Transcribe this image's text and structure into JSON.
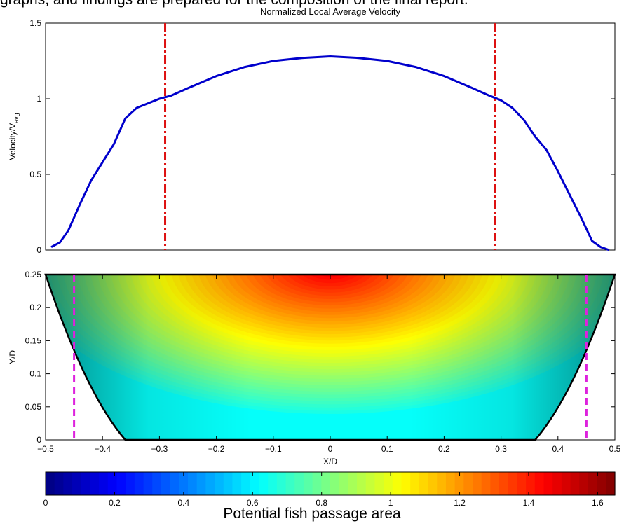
{
  "page": {
    "caption_top": "graphs, and findings are prepared for the composition of the final report.",
    "caption_bottom": "Potential fish passage area"
  },
  "chart_data": [
    {
      "type": "line",
      "title": "Normalized Local Average Velocity",
      "xlabel": "",
      "ylabel": "Velocity/V",
      "ylabel_subscript": "avg",
      "xlim": [
        -0.5,
        0.5
      ],
      "ylim": [
        0,
        1.5
      ],
      "yticks": [
        0,
        0.5,
        1,
        1.5
      ],
      "series_color": "#0000cc",
      "series": [
        {
          "x": [
            -0.49,
            -0.475,
            -0.46,
            -0.44,
            -0.42,
            -0.4,
            -0.38,
            -0.36,
            -0.34,
            -0.32,
            -0.3,
            -0.28,
            -0.25,
            -0.2,
            -0.15,
            -0.1,
            -0.05,
            0,
            0.05,
            0.1,
            0.15,
            0.2,
            0.25,
            0.28,
            0.3,
            0.32,
            0.34,
            0.36,
            0.38,
            0.4,
            0.42,
            0.44,
            0.46,
            0.475,
            0.49
          ],
          "y": [
            0.02,
            0.05,
            0.13,
            0.3,
            0.46,
            0.58,
            0.7,
            0.87,
            0.94,
            0.97,
            1.0,
            1.02,
            1.07,
            1.15,
            1.21,
            1.25,
            1.27,
            1.28,
            1.27,
            1.25,
            1.21,
            1.15,
            1.07,
            1.02,
            0.99,
            0.94,
            0.86,
            0.75,
            0.66,
            0.52,
            0.37,
            0.22,
            0.06,
            0.02,
            0.0
          ]
        }
      ],
      "vlines": [
        {
          "x": -0.29,
          "color": "#dd1111",
          "style": "dashdot"
        },
        {
          "x": 0.29,
          "color": "#dd1111",
          "style": "dashdot"
        }
      ]
    },
    {
      "type": "heatmap",
      "xlabel": "X/D",
      "ylabel": "Y/D",
      "xlim": [
        -0.5,
        0.5
      ],
      "ylim": [
        0,
        0.25
      ],
      "xticks": [
        -0.5,
        -0.4,
        -0.3,
        -0.2,
        -0.1,
        0,
        0.1,
        0.2,
        0.3,
        0.4,
        0.5
      ],
      "yticks": [
        0,
        0.05,
        0.1,
        0.15,
        0.2,
        0.25
      ],
      "boundary": {
        "bottom_half_width": 0.36,
        "top_half_width": 0.5
      },
      "vlines": [
        {
          "x": -0.45,
          "color": "#dd22dd",
          "style": "dashed"
        },
        {
          "x": 0.45,
          "color": "#dd22dd",
          "style": "dashed"
        }
      ],
      "colorbar": {
        "range": [
          0,
          1.65
        ],
        "ticks": [
          0,
          0.2,
          0.4,
          0.6,
          0.8,
          1,
          1.2,
          1.4,
          1.6
        ],
        "colormap": "jet"
      }
    }
  ]
}
